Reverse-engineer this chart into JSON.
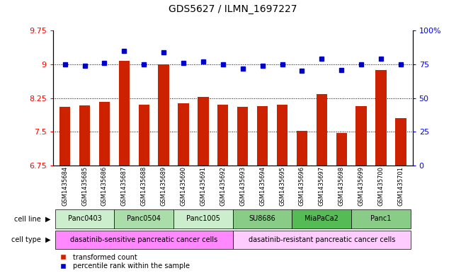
{
  "title": "GDS5627 / ILMN_1697227",
  "samples": [
    "GSM1435684",
    "GSM1435685",
    "GSM1435686",
    "GSM1435687",
    "GSM1435688",
    "GSM1435689",
    "GSM1435690",
    "GSM1435691",
    "GSM1435692",
    "GSM1435693",
    "GSM1435694",
    "GSM1435695",
    "GSM1435696",
    "GSM1435697",
    "GSM1435698",
    "GSM1435699",
    "GSM1435700",
    "GSM1435701"
  ],
  "bar_values": [
    8.05,
    8.08,
    8.17,
    9.07,
    8.1,
    9.0,
    8.13,
    8.28,
    8.1,
    8.05,
    8.07,
    8.1,
    7.52,
    8.33,
    7.47,
    8.07,
    8.88,
    7.8
  ],
  "percentile_values": [
    75,
    74,
    76,
    85,
    75,
    84,
    76,
    77,
    75,
    72,
    74,
    75,
    70,
    79,
    71,
    75,
    79,
    75
  ],
  "bar_color": "#cc2200",
  "percentile_color": "#0000cc",
  "ylim_left": [
    6.75,
    9.75
  ],
  "ylim_right": [
    0,
    100
  ],
  "yticks_left": [
    6.75,
    7.5,
    8.25,
    9.0,
    9.75
  ],
  "yticks_left_labels": [
    "6.75",
    "7.5",
    "8.25",
    "9",
    "9.75"
  ],
  "yticks_right": [
    0,
    25,
    50,
    75,
    100
  ],
  "yticks_right_labels": [
    "0",
    "25",
    "50",
    "75",
    "100%"
  ],
  "cell_lines": [
    {
      "name": "Panc0403",
      "start": 0,
      "end": 2,
      "color": "#cceecc"
    },
    {
      "name": "Panc0504",
      "start": 3,
      "end": 5,
      "color": "#aaddaa"
    },
    {
      "name": "Panc1005",
      "start": 6,
      "end": 8,
      "color": "#cceecc"
    },
    {
      "name": "SU8686",
      "start": 9,
      "end": 11,
      "color": "#88cc88"
    },
    {
      "name": "MiaPaCa2",
      "start": 12,
      "end": 14,
      "color": "#55bb55"
    },
    {
      "name": "Panc1",
      "start": 15,
      "end": 17,
      "color": "#88cc88"
    }
  ],
  "cell_types": [
    {
      "name": "dasatinib-sensitive pancreatic cancer cells",
      "start": 0,
      "end": 8,
      "color": "#ff88ff"
    },
    {
      "name": "dasatinib-resistant pancreatic cancer cells",
      "start": 9,
      "end": 17,
      "color": "#ffccff"
    }
  ],
  "legend_red_label": "transformed count",
  "legend_blue_label": "percentile rank within the sample"
}
